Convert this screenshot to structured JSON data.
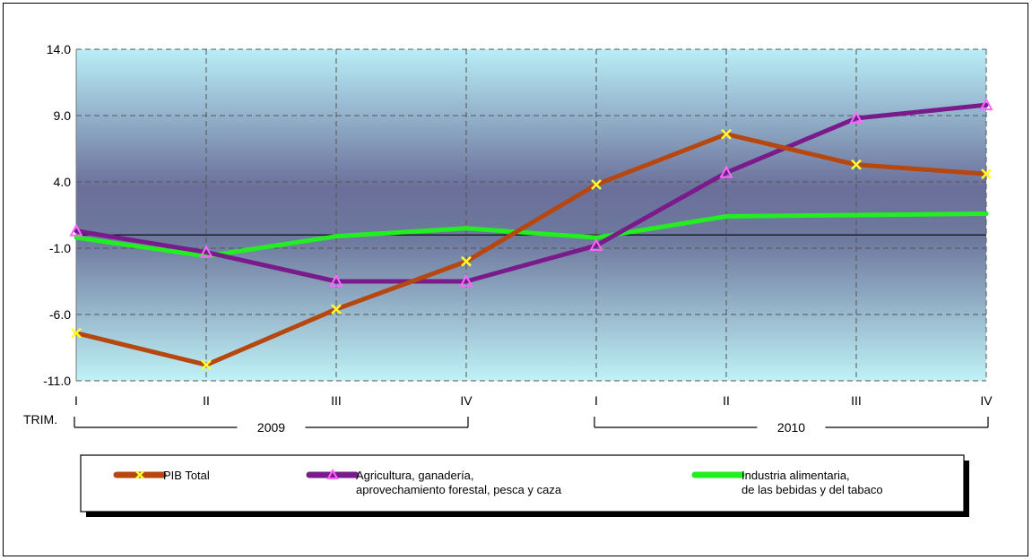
{
  "chart_data": {
    "type": "line",
    "title": "",
    "ylim": [
      -11.0,
      14.0
    ],
    "y_ticks": [
      "14.0",
      "9.0",
      "4.0",
      "-1.0",
      "-6.0",
      "-11.0"
    ],
    "y_tick_values": [
      14.0,
      9.0,
      4.0,
      -1.0,
      -6.0,
      -11.0
    ],
    "categories": [
      "I",
      "II",
      "III",
      "IV",
      "I",
      "II",
      "III",
      "IV"
    ],
    "x_axis_prefix": "TRIM.",
    "year_groups": [
      {
        "label": "2009",
        "from": 0,
        "to": 3
      },
      {
        "label": "2010",
        "from": 4,
        "to": 7
      }
    ],
    "grid": true,
    "reference_line": 0,
    "legend_position": "bottom",
    "series": [
      {
        "name": "PIB Total",
        "color": "#b5470f",
        "marker": "x",
        "marker_color": "#ffff33",
        "values": [
          -7.4,
          -9.8,
          -5.6,
          -2.0,
          3.8,
          7.6,
          5.3,
          4.6
        ]
      },
      {
        "name": "Agricultura, ganadería,\naprovechamiento forestal, pesca y caza",
        "color": "#7a1b8c",
        "marker": "triangle",
        "marker_color": "#ff66ff",
        "values": [
          0.3,
          -1.3,
          -3.5,
          -3.5,
          -0.8,
          4.7,
          8.8,
          9.8
        ]
      },
      {
        "name": "Industria alimentaria,\nde las bebidas y del tabaco",
        "color": "#22ee22",
        "marker": "none",
        "marker_color": "#22ee22",
        "values": [
          -0.2,
          -1.6,
          -0.1,
          0.5,
          -0.2,
          1.4,
          1.5,
          1.6
        ]
      }
    ]
  }
}
